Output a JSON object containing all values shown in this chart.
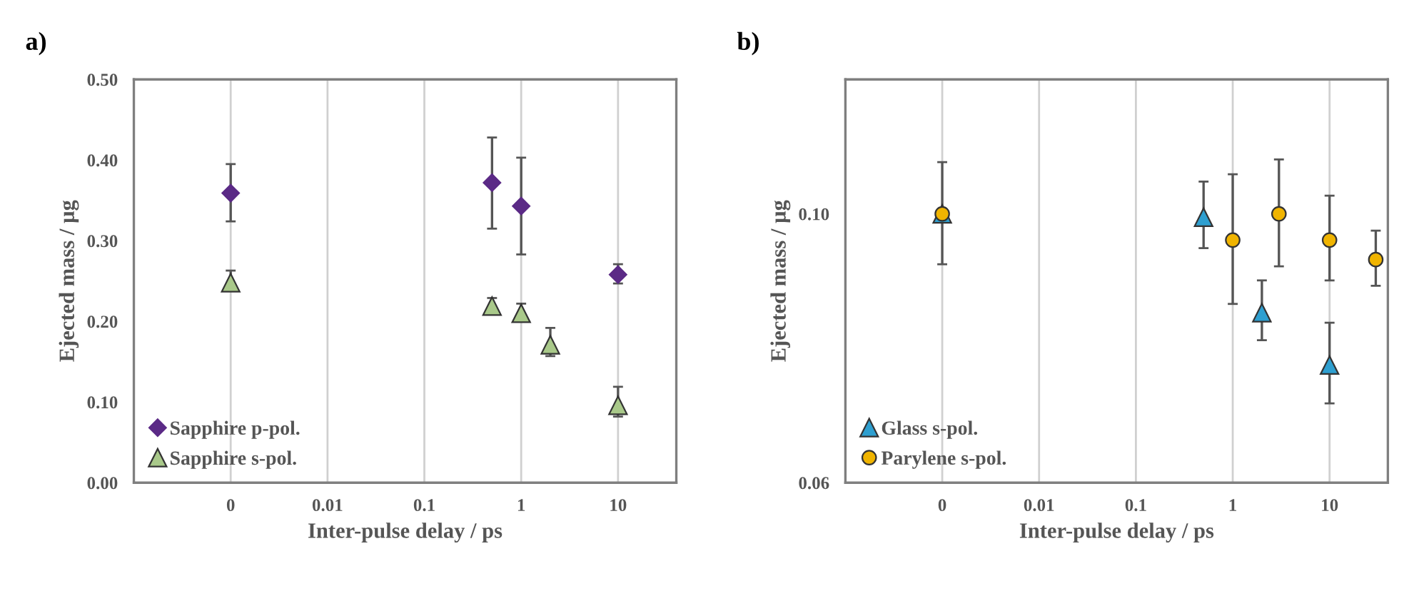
{
  "chart_data": [
    {
      "type": "scatter",
      "title": "a)",
      "xlabel": "Inter-pulse delay / ps",
      "ylabel": "Ejected mass / µg",
      "log": "x",
      "grid": "x",
      "legend": "bottom left",
      "xlim": [
        0.0001,
        40
      ],
      "xticks": [
        {
          "value": 0.001,
          "label": "0"
        },
        0.01,
        0.1,
        1,
        10
      ],
      "ylim": [
        0,
        0.5
      ],
      "yticks": [
        {
          "value": 0,
          "label": "0.00"
        },
        {
          "value": 0.1,
          "label": "0.10"
        },
        {
          "value": 0.2,
          "label": "0.20"
        },
        {
          "value": 0.3,
          "label": "0.30"
        },
        {
          "value": 0.4,
          "label": "0.40"
        },
        {
          "value": 0.5,
          "label": "0.50"
        }
      ],
      "series": [
        {
          "name": "Sapphire p-pol.",
          "color": "#5b2a86",
          "marker": "diamond",
          "x": [
            0.001,
            0.5,
            1,
            10
          ],
          "values": [
            0.359,
            0.372,
            0.343,
            0.258
          ],
          "errors": [
            [
              0.324,
              0.395
            ],
            [
              0.315,
              0.428
            ],
            [
              0.283,
              0.403
            ],
            [
              0.247,
              0.271
            ]
          ]
        },
        {
          "name": "Sapphire s-pol.",
          "color": "#a9c98a",
          "marker": "triangle",
          "x": [
            0.001,
            0.5,
            1,
            2,
            10
          ],
          "values": [
            0.248,
            0.219,
            0.21,
            0.171,
            0.096
          ],
          "errors": [
            [
              0.24,
              0.263
            ],
            [
              0.209,
              0.229
            ],
            [
              0.2,
              0.222
            ],
            [
              0.157,
              0.192
            ],
            [
              0.082,
              0.119
            ]
          ]
        }
      ]
    },
    {
      "type": "scatter",
      "title": "b)",
      "xlabel": "Inter-pulse delay / ps",
      "ylabel": "Ejected mass / µg",
      "log": "x",
      "grid": "x",
      "legend": "bottom left",
      "xlim": [
        0.0001,
        40
      ],
      "xticks": [
        {
          "value": 0.001,
          "label": "0"
        },
        0.01,
        0.1,
        1,
        10
      ],
      "ylim": [
        0.06,
        0.12
      ],
      "yticks": [
        {
          "value": 0.06,
          "label": "0.06"
        },
        {
          "value": 0.1,
          "label": "0.10"
        }
      ],
      "series": [
        {
          "name": "Glass s-pol.",
          "color": "#2e9fd0",
          "marker": "triangle",
          "x": [
            0.001,
            0.5,
            2,
            10
          ],
          "values": [
            0.1,
            0.0995,
            0.0853,
            0.0775
          ],
          "errors": [
            null,
            [
              0.0949,
              0.1048
            ],
            [
              0.0812,
              0.0901
            ],
            [
              0.0718,
              0.0838
            ]
          ]
        },
        {
          "name": "Parylene s-pol.",
          "color": "#f0b400",
          "marker": "circle",
          "x": [
            0.001,
            1,
            3,
            10,
            30
          ],
          "values": [
            0.1,
            0.0961,
            0.1,
            0.0961,
            0.0932
          ],
          "errors": [
            [
              0.0925,
              0.1077
            ],
            [
              0.0866,
              0.1059
            ],
            [
              0.0922,
              0.1081
            ],
            [
              0.0901,
              0.1027
            ],
            [
              0.0893,
              0.0975
            ]
          ]
        }
      ]
    }
  ]
}
